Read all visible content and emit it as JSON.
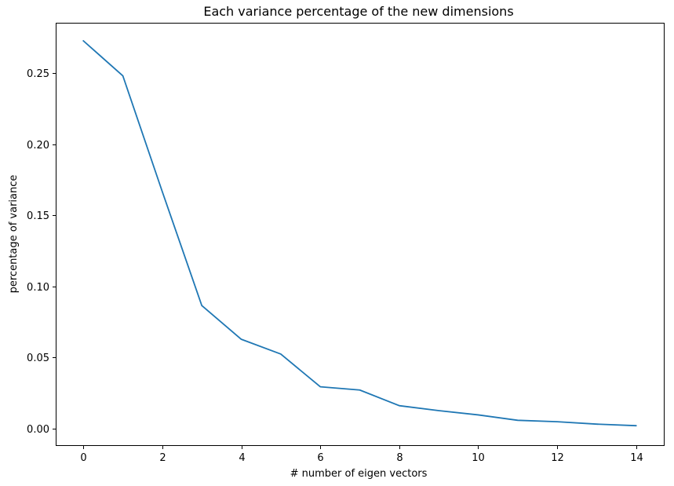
{
  "chart_data": {
    "type": "line",
    "title": "Each variance percentage of the new dimensions",
    "xlabel": "# number of eigen vectors",
    "ylabel": "percentage of variance",
    "xlim": [
      -0.7,
      14.7
    ],
    "ylim": [
      -0.0118,
      0.2854
    ],
    "xticks": [
      0,
      2,
      4,
      6,
      8,
      10,
      12,
      14
    ],
    "xtick_labels": [
      "0",
      "2",
      "4",
      "6",
      "8",
      "10",
      "12",
      "14"
    ],
    "yticks": [
      0.0,
      0.05,
      0.1,
      0.15,
      0.2,
      0.25
    ],
    "ytick_labels": [
      "0.00",
      "0.05",
      "0.10",
      "0.15",
      "0.20",
      "0.25"
    ],
    "grid": false,
    "series": [
      {
        "color": "#1f77b4",
        "x": [
          0,
          1,
          2,
          3,
          4,
          5,
          6,
          7,
          8,
          9,
          10,
          11,
          12,
          13,
          14
        ],
        "y": [
          0.2727,
          0.2481,
          0.1665,
          0.0864,
          0.0627,
          0.0523,
          0.0293,
          0.027,
          0.016,
          0.0125,
          0.0095,
          0.0057,
          0.0047,
          0.003,
          0.0019
        ]
      }
    ]
  }
}
